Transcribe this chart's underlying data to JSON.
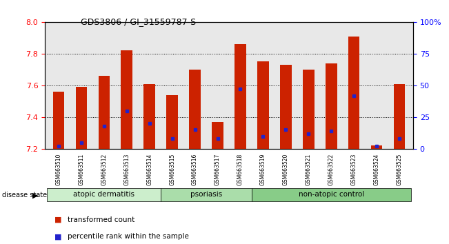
{
  "title": "GDS3806 / GI_31559787-S",
  "samples": [
    "GSM663510",
    "GSM663511",
    "GSM663512",
    "GSM663513",
    "GSM663514",
    "GSM663515",
    "GSM663516",
    "GSM663517",
    "GSM663518",
    "GSM663519",
    "GSM663520",
    "GSM663521",
    "GSM663522",
    "GSM663523",
    "GSM663524",
    "GSM663525"
  ],
  "transformed_count": [
    7.56,
    7.59,
    7.66,
    7.82,
    7.61,
    7.54,
    7.7,
    7.37,
    7.86,
    7.75,
    7.73,
    7.7,
    7.74,
    7.91,
    7.22,
    7.61
  ],
  "percentile": [
    2,
    5,
    18,
    30,
    20,
    8,
    15,
    8,
    47,
    10,
    15,
    12,
    14,
    42,
    2,
    8
  ],
  "ymin": 7.2,
  "ymax": 8.0,
  "yticks": [
    7.2,
    7.4,
    7.6,
    7.8,
    8.0
  ],
  "right_yticks": [
    0,
    25,
    50,
    75,
    100
  ],
  "right_ytick_labels": [
    "0",
    "25",
    "50",
    "75",
    "100%"
  ],
  "bar_color": "#cc2200",
  "percentile_color": "#2222cc",
  "bg_color": "#e8e8e8",
  "disease_groups": [
    {
      "label": "atopic dermatitis",
      "start": 0,
      "end": 5,
      "color": "#cceecc"
    },
    {
      "label": "psoriasis",
      "start": 5,
      "end": 9,
      "color": "#aaddaa"
    },
    {
      "label": "non-atopic control",
      "start": 9,
      "end": 16,
      "color": "#88cc88"
    }
  ],
  "legend_items": [
    {
      "label": "transformed count",
      "color": "#cc2200"
    },
    {
      "label": "percentile rank within the sample",
      "color": "#2222cc"
    }
  ],
  "disease_state_label": "disease state"
}
